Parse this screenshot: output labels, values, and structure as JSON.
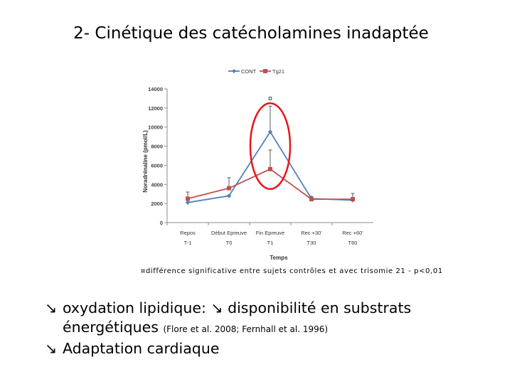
{
  "title": "2- Cinétique des catécholamines inadaptée",
  "chart_data": {
    "type": "line",
    "ylabel": "Noradrénaline (pmol/L)",
    "xlabel": "Temps",
    "ylim": [
      0,
      14000
    ],
    "yticks": [
      0,
      2000,
      4000,
      6000,
      8000,
      10000,
      12000,
      14000
    ],
    "categories": [
      {
        "top": "Repos",
        "bottom": "T-1"
      },
      {
        "top": "Début Epreuve",
        "bottom": "T0"
      },
      {
        "top": "Fin Epreuve",
        "bottom": "T1"
      },
      {
        "top": "Rec +30'",
        "bottom": "T30"
      },
      {
        "top": "Rec +60'",
        "bottom": "T60"
      }
    ],
    "series": [
      {
        "name": "CONT",
        "color": "#4f81bd",
        "marker": "diamond",
        "values": [
          2100,
          2800,
          9500,
          2500,
          2350
        ],
        "error": [
          0,
          0,
          2700,
          0,
          0
        ]
      },
      {
        "name": "Tg21",
        "color": "#c0504d",
        "marker": "square",
        "values": [
          2500,
          3600,
          5600,
          2450,
          2450
        ],
        "error": [
          700,
          1100,
          2000,
          300,
          600
        ]
      }
    ],
    "annotation": "¤",
    "highlight_color": "#e8141b"
  },
  "footnote": "¤différence significative entre sujets contrôles et avec trisomie 21 - p<0,01",
  "bullets": [
    {
      "arrow": "↘",
      "text": "oxydation lipidique: ↘ disponibilité en substrats"
    },
    {
      "arrow": "",
      "text": "énergétiques ",
      "cite": "(Flore et al. 2008; Fernhall et al. 1996)"
    },
    {
      "arrow": "↘",
      "text": "Adaptation cardiaque"
    }
  ]
}
